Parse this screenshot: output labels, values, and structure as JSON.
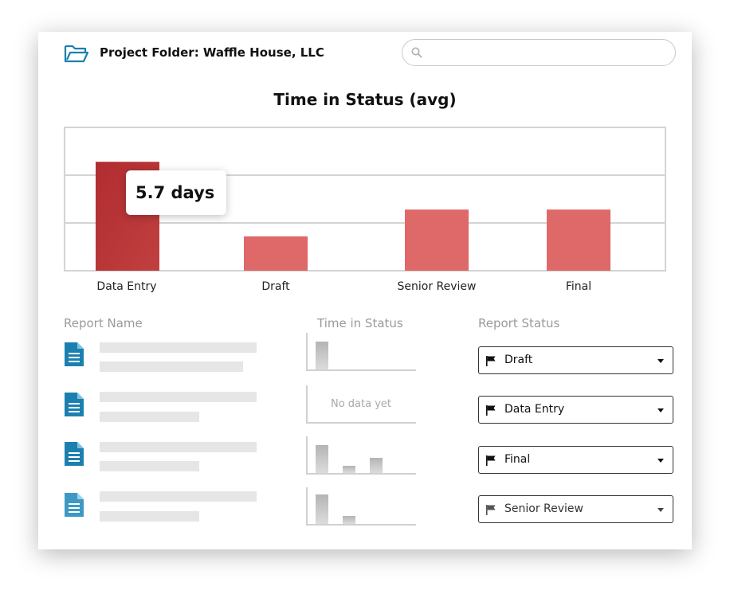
{
  "header": {
    "folder_icon": "folder-open-icon",
    "title": "Project Folder: Waffle House, LLC",
    "search_icon": "search-icon",
    "search_placeholder": ""
  },
  "colors": {
    "bar": "#df6868",
    "bar_highlight": "#b53336",
    "file_icon": "#1b80b0",
    "file_icon_light": "#3d99c4"
  },
  "chart_data": {
    "type": "bar",
    "title": "Time in Status (avg)",
    "categories": [
      "Data Entry",
      "Draft",
      "Senior Review",
      "Final"
    ],
    "values": [
      5.7,
      1.8,
      3.2,
      3.2
    ],
    "ylim": [
      0,
      7.5
    ],
    "grid": true,
    "highlighted_index": 0,
    "tooltip": "5.7 days"
  },
  "table": {
    "headers": {
      "report_name": "Report Name",
      "time_in_status": "Time in Status",
      "report_status": "Report Status"
    },
    "rows": [
      {
        "icon": "document-icon",
        "mini_chart": [
          0.75
        ],
        "no_data": "",
        "status": "Draft"
      },
      {
        "icon": "document-icon",
        "mini_chart": [],
        "no_data": "No data yet",
        "status": "Data Entry"
      },
      {
        "icon": "document-icon",
        "mini_chart": [
          0.75,
          0.2,
          0.42
        ],
        "no_data": "",
        "status": "Final"
      },
      {
        "icon": "document-icon",
        "mini_chart": [
          0.8,
          0.22
        ],
        "no_data": "",
        "status": "Senior Review"
      }
    ]
  }
}
